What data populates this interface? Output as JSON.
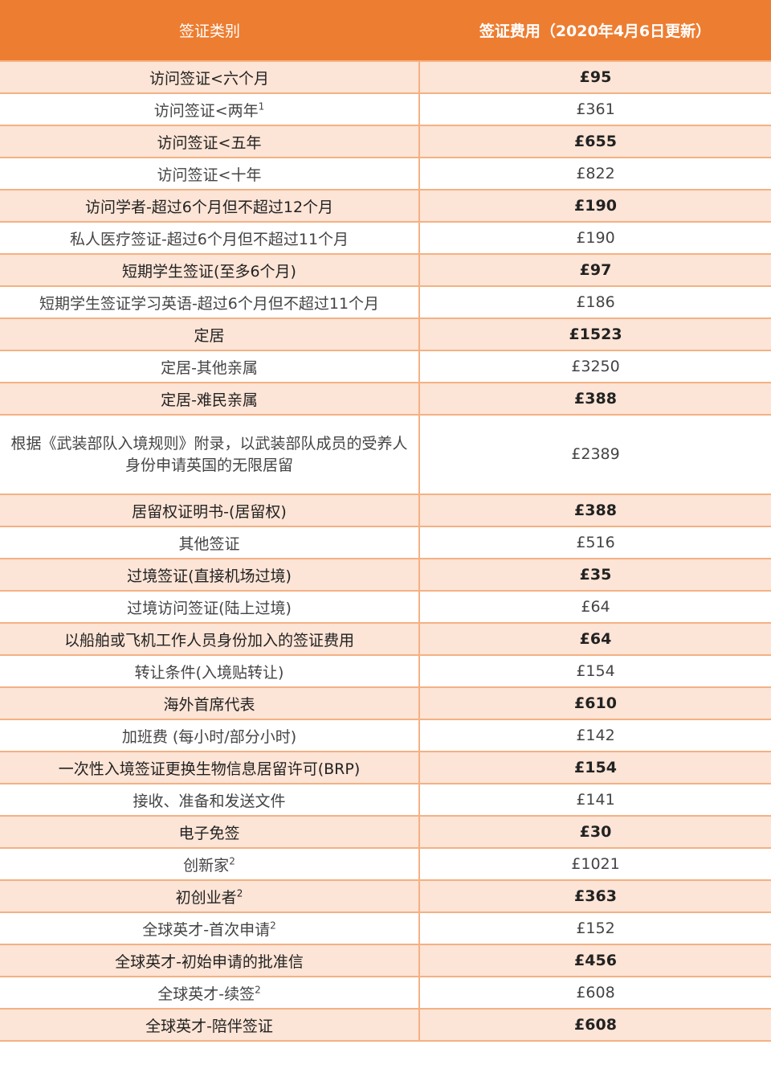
{
  "header": {
    "category": "签证类别",
    "fee": "签证费用（2020年4月6日更新）"
  },
  "colors": {
    "header": "#ed7d31",
    "shaded_row": "#fce4d6",
    "border": "#f4b183"
  },
  "rows": [
    {
      "name": "访问签证<六个月",
      "fee": "£95"
    },
    {
      "name": "访问签证<两年",
      "sup": "1",
      "fee": "£361"
    },
    {
      "name": "访问签证<五年",
      "fee": "£655"
    },
    {
      "name": "访问签证<十年",
      "fee": "£822"
    },
    {
      "name": "访问学者-超过6个月但不超过12个月",
      "fee": "£190"
    },
    {
      "name": "私人医疗签证-超过6个月但不超过11个月",
      "fee": "£190"
    },
    {
      "name": "短期学生签证(至多6个月)",
      "fee": "£97"
    },
    {
      "name": "短期学生签证学习英语-超过6个月但不超过11个月",
      "fee": "£186"
    },
    {
      "name": "定居",
      "fee": "£1523"
    },
    {
      "name": "定居-其他亲属",
      "fee": "£3250"
    },
    {
      "name": "定居-难民亲属",
      "fee": "£388"
    },
    {
      "name": "根据《武装部队入境规则》附录，以武装部队成员的受养人身份申请英国的无限居留",
      "fee": "£2389",
      "tall": true
    },
    {
      "name": "居留权证明书-(居留权)",
      "fee": "£388"
    },
    {
      "name": "其他签证",
      "fee": "£516"
    },
    {
      "name": "过境签证(直接机场过境)",
      "fee": "£35"
    },
    {
      "name": "过境访问签证(陆上过境)",
      "fee": "£64"
    },
    {
      "name": "以船舶或飞机工作人员身份加入的签证费用",
      "fee": "£64"
    },
    {
      "name": "转让条件(入境贴转让)",
      "fee": "£154"
    },
    {
      "name": "海外首席代表",
      "fee": "£610"
    },
    {
      "name": "加班费 (每小时/部分小时)",
      "fee": "£142"
    },
    {
      "name": "一次性入境签证更换生物信息居留许可(BRP)",
      "fee": "£154"
    },
    {
      "name": "接收、准备和发送文件",
      "fee": "£141"
    },
    {
      "name": "电子免签",
      "fee": "£30"
    },
    {
      "name": "创新家",
      "sup": "2",
      "fee": "£1021"
    },
    {
      "name": "初创业者",
      "sup": "2",
      "fee": "£363"
    },
    {
      "name": "全球英才-首次申请",
      "sup": "2",
      "fee": "£152"
    },
    {
      "name": "全球英才-初始申请的批准信",
      "fee": "£456"
    },
    {
      "name": "全球英才-续签",
      "sup": "2",
      "fee": "£608"
    },
    {
      "name": "全球英才-陪伴签证",
      "fee": "£608"
    }
  ]
}
